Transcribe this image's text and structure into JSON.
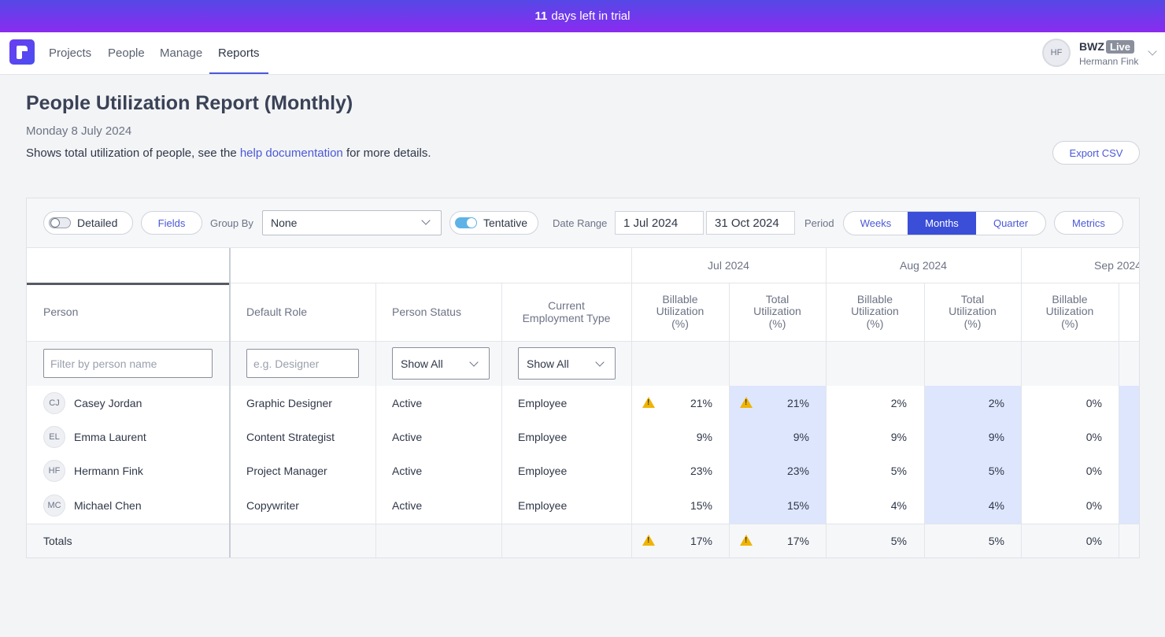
{
  "banner": {
    "days": "11",
    "text": "days left in trial"
  },
  "nav": {
    "items": [
      "Projects",
      "People",
      "Manage",
      "Reports"
    ]
  },
  "account": {
    "initials": "HF",
    "name": "BWZ",
    "badge": "Live",
    "user": "Hermann Fink"
  },
  "page": {
    "title": "People Utilization Report (Monthly)",
    "date": "Monday 8 July 2024",
    "desc_pre": "Shows total utilization of people, see the ",
    "desc_link": "help documentation",
    "desc_post": " for more details.",
    "export_label": "Export CSV"
  },
  "toolbar": {
    "detailed_label": "Detailed",
    "fields_label": "Fields",
    "group_by_label": "Group By",
    "group_by_value": "None",
    "tentative_label": "Tentative",
    "date_range_label": "Date Range",
    "date_from": "1 Jul 2024",
    "date_to": "31 Oct 2024",
    "period_label": "Period",
    "period_options": [
      "Weeks",
      "Months",
      "Quarter"
    ],
    "metrics_label": "Metrics"
  },
  "table": {
    "months": [
      "Jul 2024",
      "Aug 2024",
      "Sep 2024"
    ],
    "headers": {
      "person": "Person",
      "role": "Default Role",
      "status": "Person Status",
      "emp_line1": "Current",
      "emp_line2": "Employment Type",
      "bill_line1": "Billable",
      "bill_line2": "Utilization",
      "total_line1": "Total",
      "total_line2": "Utilization",
      "pct": "(%)"
    },
    "filters": {
      "person_placeholder": "Filter by person name",
      "role_placeholder": "e.g. Designer",
      "status_value": "Show All",
      "emp_value": "Show All"
    },
    "rows": [
      {
        "initials": "CJ",
        "name": "Casey Jordan",
        "role": "Graphic Designer",
        "status": "Active",
        "emp": "Employee",
        "jul_b": "21%",
        "jul_t": "21%",
        "aug_b": "2%",
        "aug_t": "2%",
        "sep_b": "0%"
      },
      {
        "initials": "EL",
        "name": "Emma Laurent",
        "role": "Content Strategist",
        "status": "Active",
        "emp": "Employee",
        "jul_b": "9%",
        "jul_t": "9%",
        "aug_b": "9%",
        "aug_t": "9%",
        "sep_b": "0%"
      },
      {
        "initials": "HF",
        "name": "Hermann Fink",
        "role": "Project Manager",
        "status": "Active",
        "emp": "Employee",
        "jul_b": "23%",
        "jul_t": "23%",
        "aug_b": "5%",
        "aug_t": "5%",
        "sep_b": "0%"
      },
      {
        "initials": "MC",
        "name": "Michael Chen",
        "role": "Copywriter",
        "status": "Active",
        "emp": "Employee",
        "jul_b": "15%",
        "jul_t": "15%",
        "aug_b": "4%",
        "aug_t": "4%",
        "sep_b": "0%"
      }
    ],
    "totals": {
      "label": "Totals",
      "jul_b": "17%",
      "jul_t": "17%",
      "aug_b": "5%",
      "aug_t": "5%",
      "sep_b": "0%"
    }
  },
  "colors": {
    "accent": "#3b4ed8",
    "link": "#4a58d8",
    "highlight": "#dde6fd",
    "warning": "#f0b400"
  }
}
